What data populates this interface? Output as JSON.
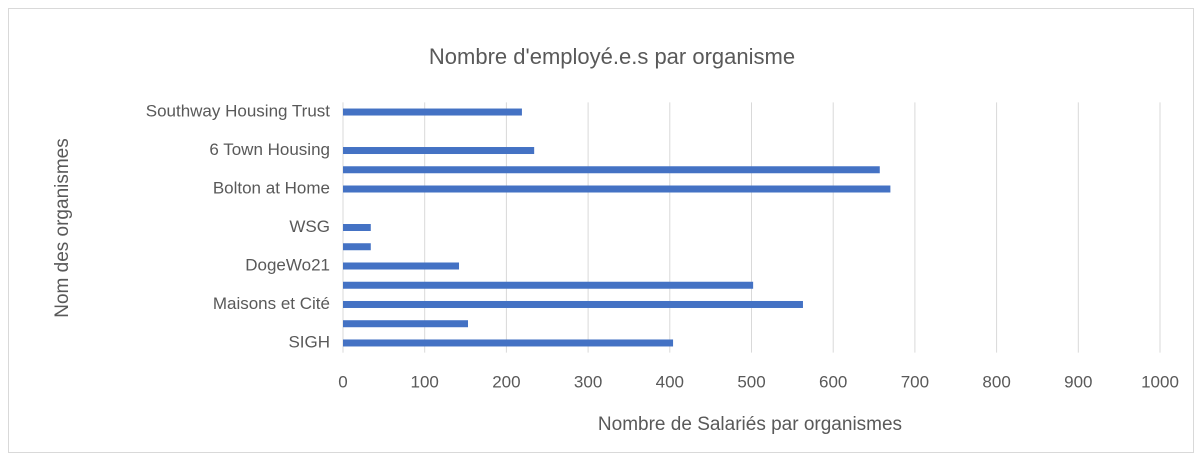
{
  "chart_data": {
    "type": "barh",
    "title": "Nombre d'employé.e.s par organisme",
    "xlabel": "Nombre de Salariés par organismes",
    "ylabel": "Nom des organismes",
    "categories": [
      "SIGH",
      null,
      "Maisons et Cité",
      null,
      "DogeWo21",
      null,
      "WSG",
      null,
      "Bolton at Home",
      null,
      "6 Town Housing",
      null,
      "Southway Housing Trust"
    ],
    "values": [
      404,
      153,
      563,
      502,
      142,
      34,
      34,
      null,
      670,
      657,
      234,
      null,
      219
    ],
    "color": "#4472c4",
    "xlim": [
      0,
      1000
    ],
    "xticks": [
      0,
      100,
      200,
      300,
      400,
      500,
      600,
      700,
      800,
      900,
      1000
    ],
    "grid": true
  }
}
